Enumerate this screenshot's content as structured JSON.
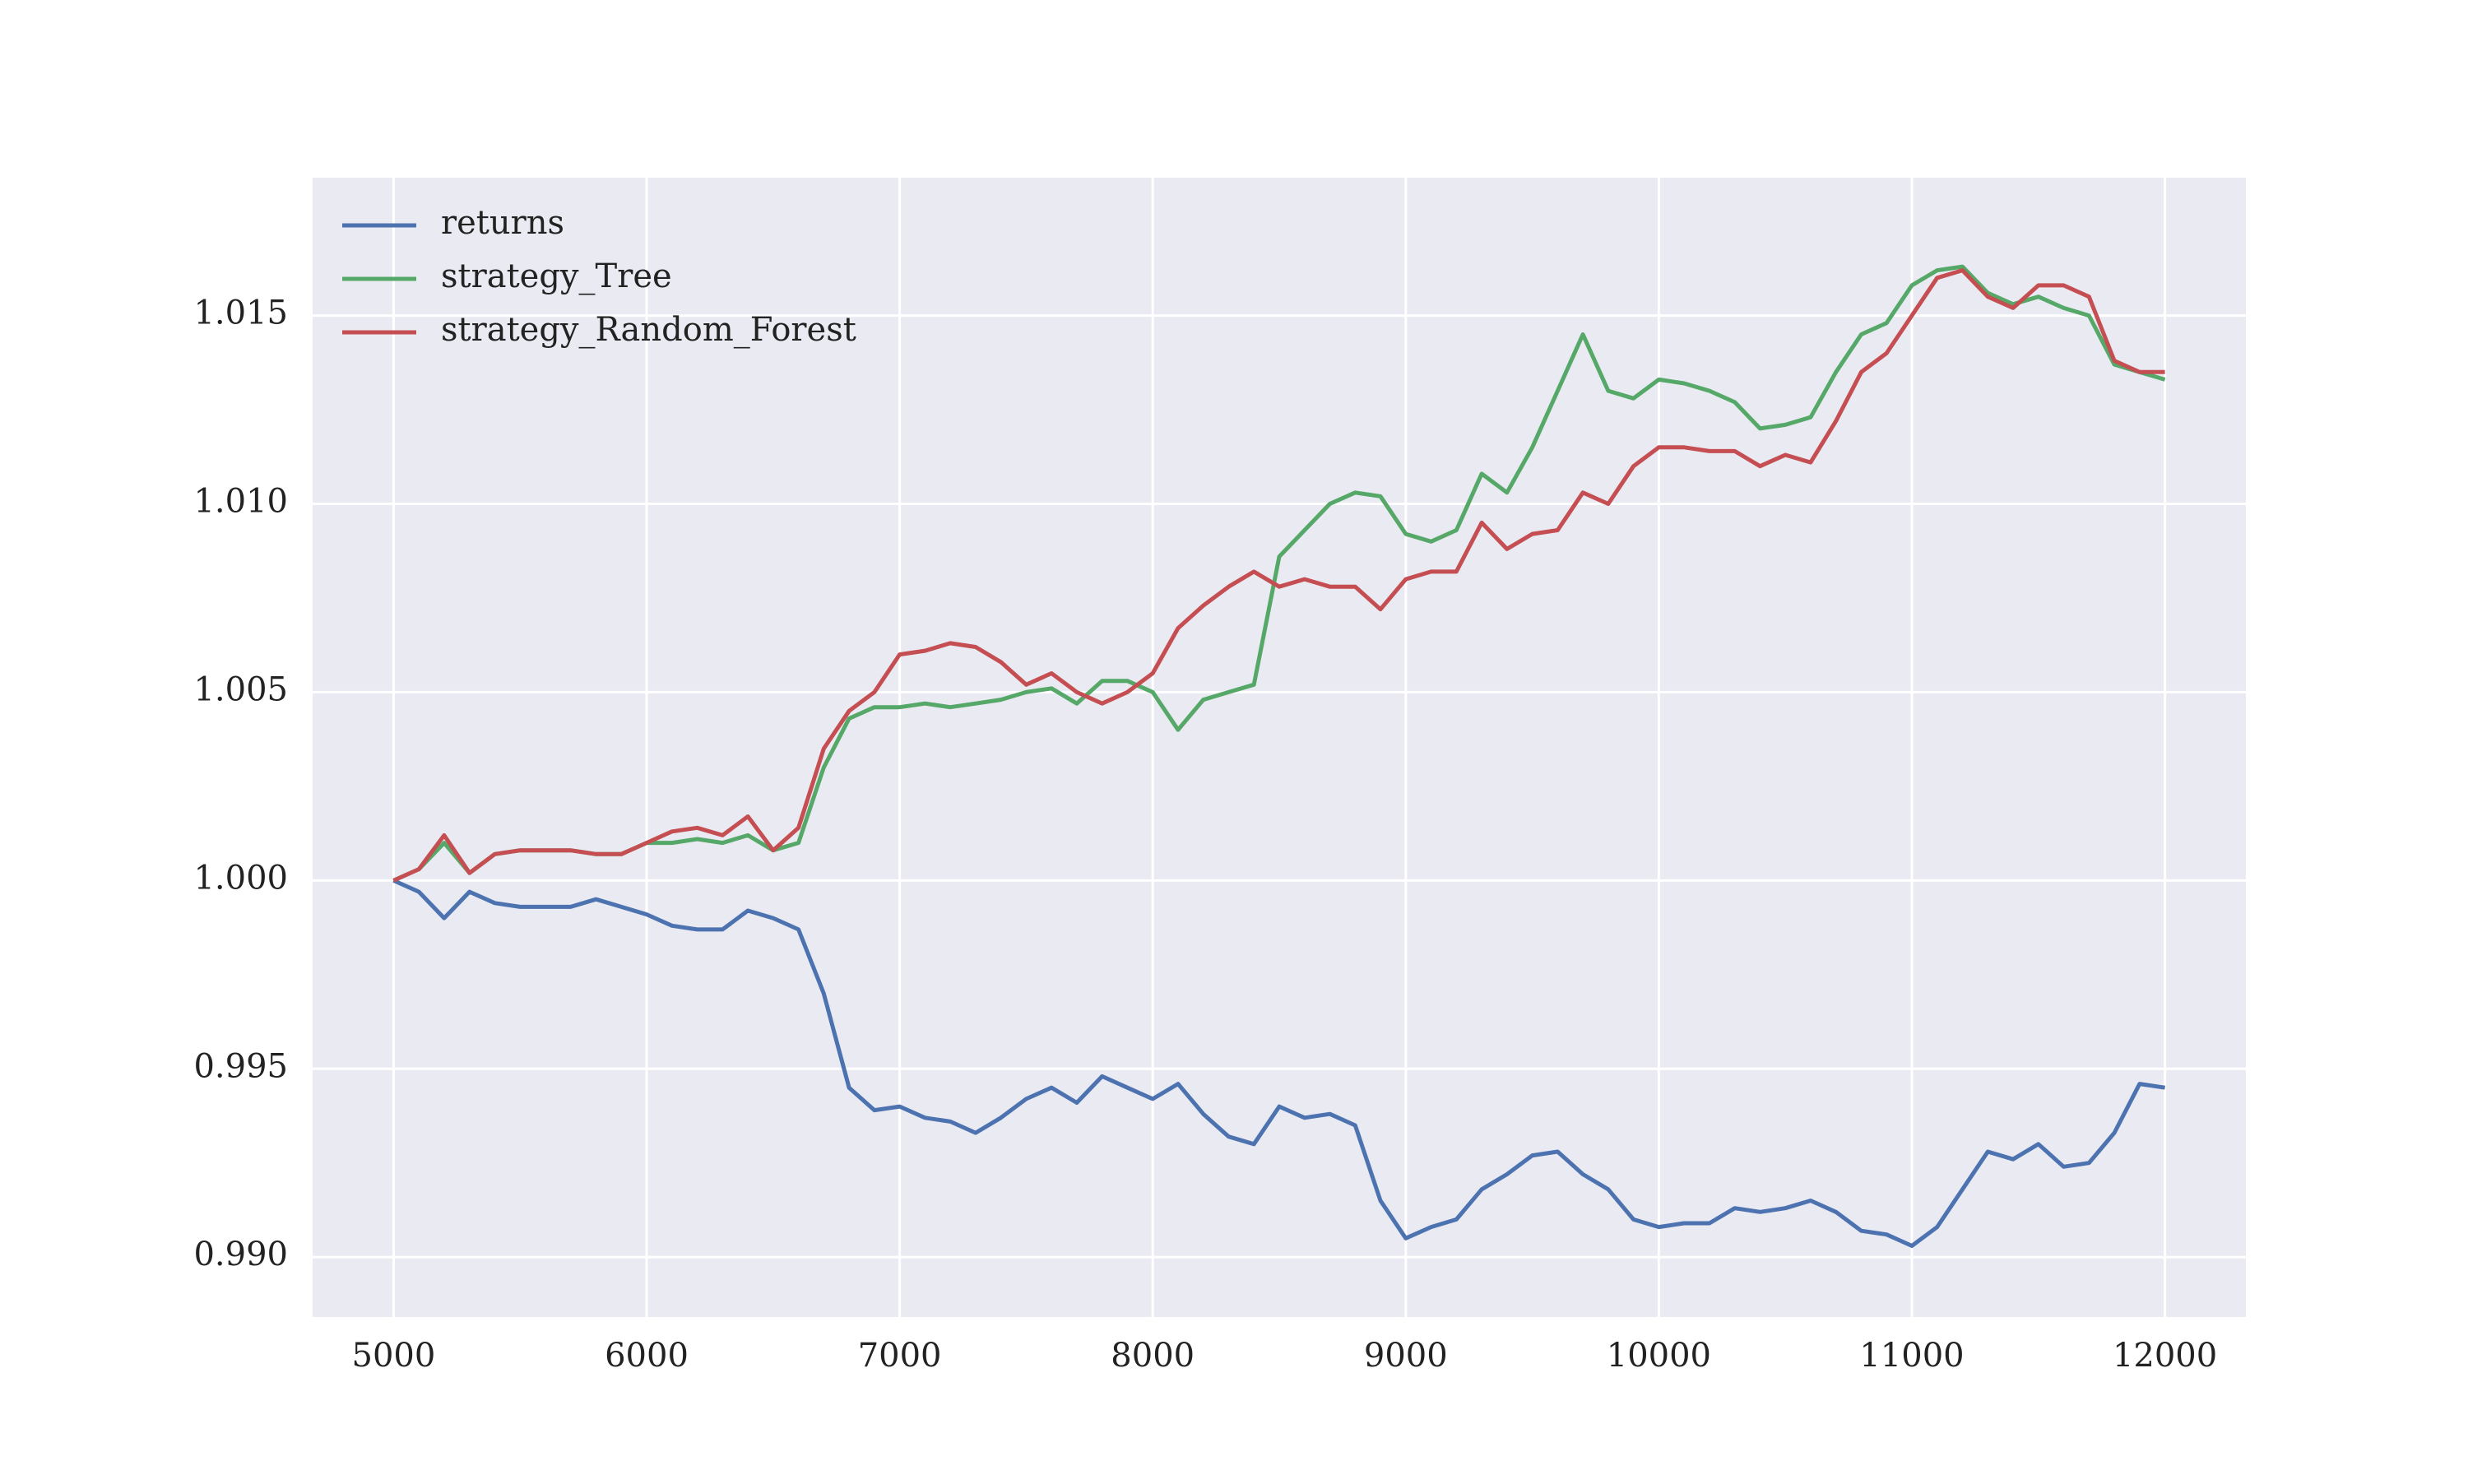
{
  "chart_data": {
    "type": "line",
    "x": [
      5000,
      5100,
      5200,
      5300,
      5400,
      5500,
      5600,
      5700,
      5800,
      5900,
      6000,
      6100,
      6200,
      6300,
      6400,
      6500,
      6600,
      6700,
      6800,
      6900,
      7000,
      7100,
      7200,
      7300,
      7400,
      7500,
      7600,
      7700,
      7800,
      7900,
      8000,
      8100,
      8200,
      8300,
      8400,
      8500,
      8600,
      8700,
      8800,
      8900,
      9000,
      9100,
      9200,
      9300,
      9400,
      9500,
      9600,
      9700,
      9800,
      9900,
      10000,
      10100,
      10200,
      10300,
      10400,
      10500,
      10600,
      10700,
      10800,
      10900,
      11000,
      11100,
      11200,
      11300,
      11400,
      11500,
      11600,
      11700,
      11800,
      11900,
      12000
    ],
    "series": [
      {
        "name": "returns",
        "color": "#4c72b0",
        "values": [
          1.0,
          0.9997,
          0.999,
          0.9997,
          0.9994,
          0.9993,
          0.9993,
          0.9993,
          0.9995,
          0.9993,
          0.9991,
          0.9988,
          0.9987,
          0.9987,
          0.9992,
          0.999,
          0.9987,
          0.997,
          0.9945,
          0.9939,
          0.994,
          0.9937,
          0.9936,
          0.9933,
          0.9937,
          0.9942,
          0.9945,
          0.9941,
          0.9948,
          0.9945,
          0.9942,
          0.9946,
          0.9938,
          0.9932,
          0.993,
          0.994,
          0.9937,
          0.9938,
          0.9935,
          0.9915,
          0.9905,
          0.9908,
          0.991,
          0.9918,
          0.9922,
          0.9927,
          0.9928,
          0.9922,
          0.9918,
          0.991,
          0.9908,
          0.9909,
          0.9909,
          0.9913,
          0.9912,
          0.9913,
          0.9915,
          0.9912,
          0.9907,
          0.9906,
          0.9903,
          0.9908,
          0.9918,
          0.9928,
          0.9926,
          0.993,
          0.9924,
          0.9925,
          0.9933,
          0.9946,
          0.9945
        ]
      },
      {
        "name": "strategy_Tree",
        "color": "#55a868",
        "values": [
          1.0,
          1.0003,
          1.001,
          1.0002,
          1.0007,
          1.0008,
          1.0008,
          1.0008,
          1.0007,
          1.0007,
          1.001,
          1.001,
          1.0011,
          1.001,
          1.0012,
          1.0008,
          1.001,
          1.003,
          1.0043,
          1.0046,
          1.0046,
          1.0047,
          1.0046,
          1.0047,
          1.0048,
          1.005,
          1.0051,
          1.0047,
          1.0053,
          1.0053,
          1.005,
          1.004,
          1.0048,
          1.005,
          1.0052,
          1.0086,
          1.0093,
          1.01,
          1.0103,
          1.0102,
          1.0092,
          1.009,
          1.0093,
          1.0108,
          1.0103,
          1.0115,
          1.013,
          1.0145,
          1.013,
          1.0128,
          1.0133,
          1.0132,
          1.013,
          1.0127,
          1.012,
          1.0121,
          1.0123,
          1.0135,
          1.0145,
          1.0148,
          1.0158,
          1.0162,
          1.0163,
          1.0156,
          1.0153,
          1.0155,
          1.0152,
          1.015,
          1.0137,
          1.0135,
          1.0133
        ]
      },
      {
        "name": "strategy_Random_Forest",
        "color": "#c44e52",
        "values": [
          1.0,
          1.0003,
          1.0012,
          1.0002,
          1.0007,
          1.0008,
          1.0008,
          1.0008,
          1.0007,
          1.0007,
          1.001,
          1.0013,
          1.0014,
          1.0012,
          1.0017,
          1.0008,
          1.0014,
          1.0035,
          1.0045,
          1.005,
          1.006,
          1.0061,
          1.0063,
          1.0062,
          1.0058,
          1.0052,
          1.0055,
          1.005,
          1.0047,
          1.005,
          1.0055,
          1.0067,
          1.0073,
          1.0078,
          1.0082,
          1.0078,
          1.008,
          1.0078,
          1.0078,
          1.0072,
          1.008,
          1.0082,
          1.0082,
          1.0095,
          1.0088,
          1.0092,
          1.0093,
          1.0103,
          1.01,
          1.011,
          1.0115,
          1.0115,
          1.0114,
          1.0114,
          1.011,
          1.0113,
          1.0111,
          1.0122,
          1.0135,
          1.014,
          1.015,
          1.016,
          1.0162,
          1.0155,
          1.0152,
          1.0158,
          1.0158,
          1.0155,
          1.0138,
          1.0135,
          1.0135
        ]
      }
    ],
    "xlim": [
      4680,
      12320
    ],
    "ylim": [
      0.98841,
      1.01866
    ],
    "xticks": [
      5000,
      6000,
      7000,
      8000,
      9000,
      10000,
      11000,
      12000
    ],
    "yticks": [
      {
        "value": 0.99,
        "label": "0.990"
      },
      0.995,
      {
        "value": 1,
        "label": "1.000"
      },
      1.005,
      {
        "value": 1.01,
        "label": "1.010"
      },
      1.015
    ],
    "grid": true,
    "legend": "upper left"
  }
}
